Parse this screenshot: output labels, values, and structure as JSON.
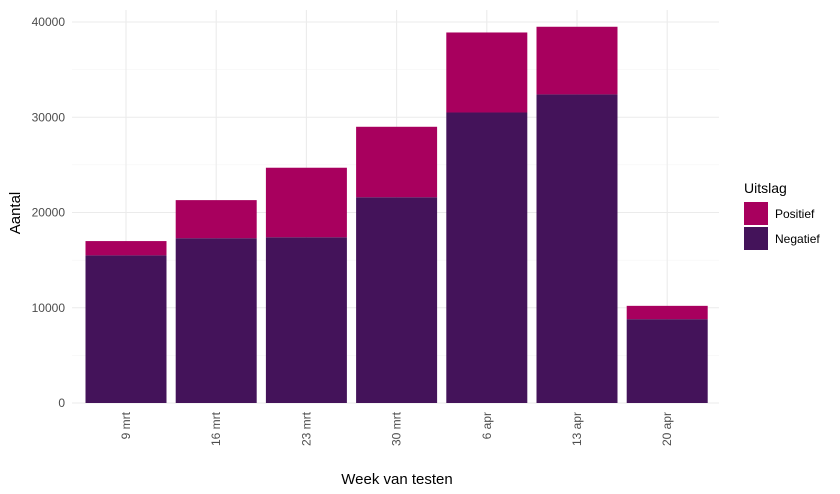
{
  "chart_data": {
    "type": "bar",
    "stacked": true,
    "categories": [
      "9 mrt",
      "16 mrt",
      "23 mrt",
      "30 mrt",
      "6 apr",
      "13 apr",
      "20 apr"
    ],
    "series": [
      {
        "name": "Negatief",
        "color": "#44135a",
        "values": [
          15500,
          17300,
          17400,
          21600,
          30500,
          32400,
          8800
        ]
      },
      {
        "name": "Positief",
        "color": "#a8005e",
        "values": [
          1500,
          4000,
          7300,
          7400,
          8400,
          7100,
          1400
        ]
      }
    ],
    "xlabel": "Week van testen",
    "ylabel": "Aantal",
    "ylim": [
      0,
      40000
    ],
    "yticks": [
      0,
      10000,
      20000,
      30000,
      40000
    ],
    "grid": true,
    "legend": {
      "title": "Uitslag",
      "placement": "right",
      "entries": [
        {
          "label": "Positief",
          "color": "#a8005e"
        },
        {
          "label": "Negatief",
          "color": "#44135a"
        }
      ]
    }
  }
}
